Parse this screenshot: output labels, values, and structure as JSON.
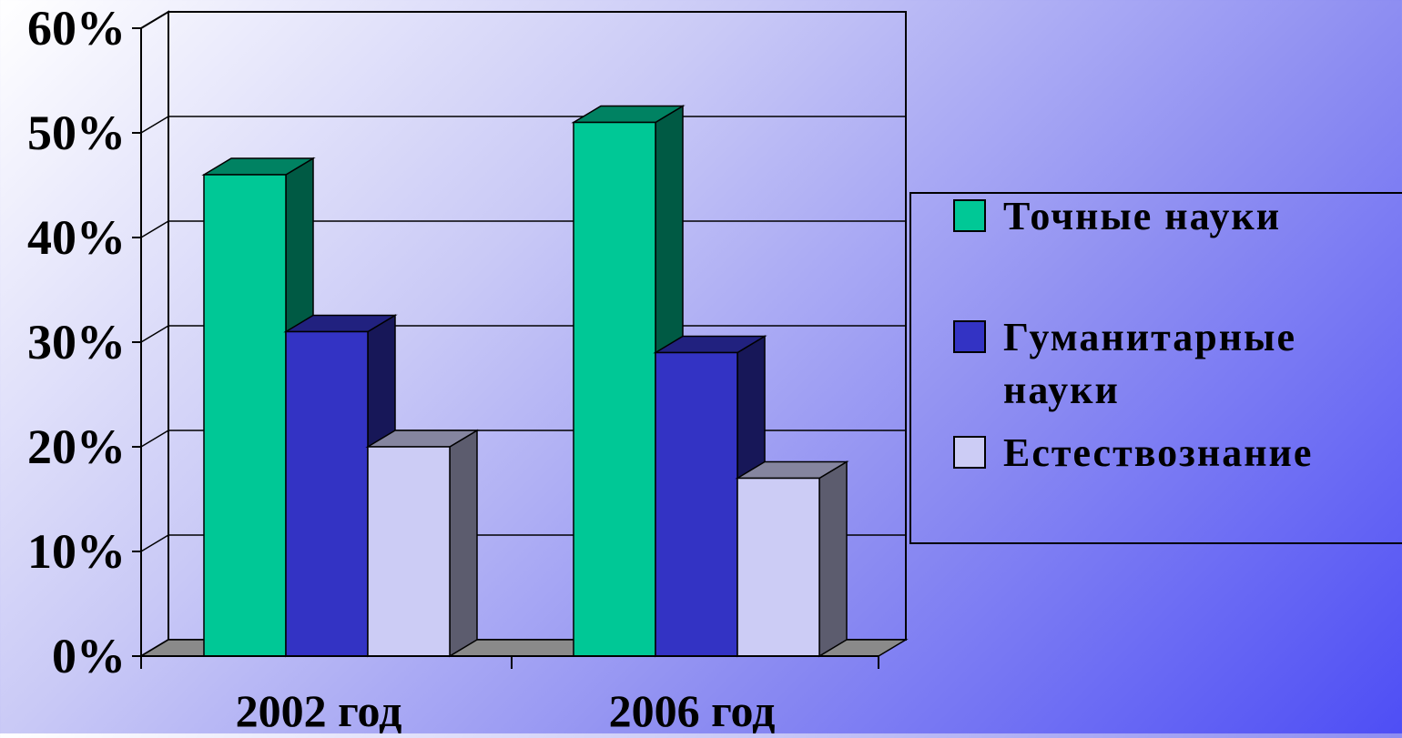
{
  "chart_data": {
    "type": "bar",
    "title": "",
    "xlabel": "",
    "ylabel": "",
    "ylim": [
      0,
      60
    ],
    "y_ticks": [
      "0%",
      "10%",
      "20%",
      "30%",
      "40%",
      "50%",
      "60%"
    ],
    "y_tick_values": [
      0,
      10,
      20,
      30,
      40,
      50,
      60
    ],
    "categories": [
      "2002 год",
      "2006 год"
    ],
    "series": [
      {
        "name": "Точные науки",
        "values": [
          46,
          51
        ],
        "color": "#00c896"
      },
      {
        "name": "Гуманитарные науки",
        "values": [
          31,
          29
        ],
        "color": "#3333c4"
      },
      {
        "name": "Естествознание",
        "values": [
          20,
          17
        ],
        "color": "#ccccf5"
      }
    ],
    "legend_position": "right",
    "grid": true,
    "style": "3d-column"
  },
  "legend": {
    "items": [
      {
        "lines": [
          "Точные науки"
        ],
        "color": "#00c896"
      },
      {
        "lines": [
          "Гуманитарные",
          "науки"
        ],
        "color": "#3333c4"
      },
      {
        "lines": [
          "Естествознание"
        ],
        "color": "#ccccf5"
      }
    ]
  }
}
